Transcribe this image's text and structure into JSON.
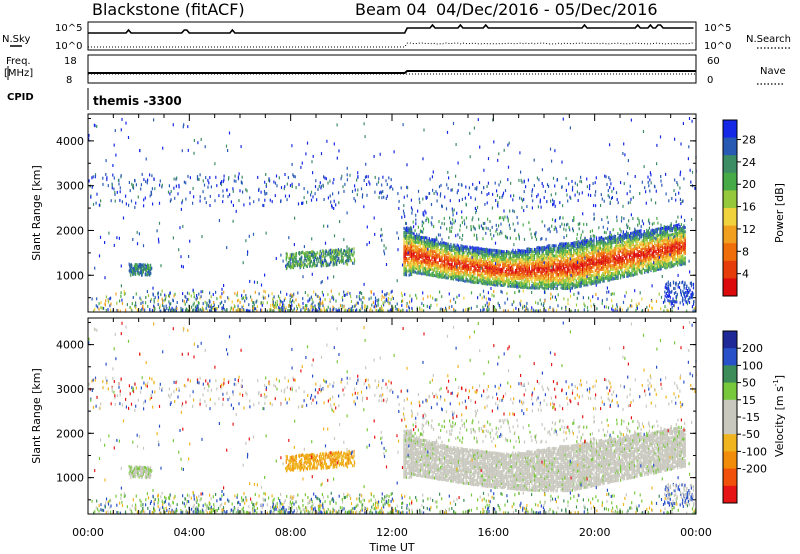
{
  "header": {
    "station": "Blackstone (fitACF)",
    "beam": "Beam 04",
    "date_range": "04/Dec/2016 - 05/Dec/2016"
  },
  "params": {
    "nsky_label": "N.Sky",
    "nsearch_label": "N.Search",
    "nsky_ticks": [
      "10^5",
      "10^0"
    ],
    "nsearch_ticks": [
      "10^5",
      "10^0"
    ],
    "freq_label_1": "Freq.",
    "freq_label_2": "[MHz]",
    "freq_ticks": [
      "18",
      "8"
    ],
    "nave_label": "Nave",
    "nave_ticks": [
      "60",
      "0"
    ],
    "cpid_label": "CPID",
    "cpid_value": "themis -3300"
  },
  "chart_data": [
    {
      "type": "heatmap",
      "title": "",
      "ylabel": "Slant Range [km]",
      "ylim": [
        180,
        4600
      ],
      "yticks": [
        "1000",
        "2000",
        "3000",
        "4000"
      ],
      "colorbar_label": "Power [dB]",
      "colorbar_ticks": [
        "4",
        "8",
        "12",
        "16",
        "20",
        "24",
        "28"
      ],
      "colorbar_colors": [
        "#1428e6",
        "#285ab4",
        "#3c8c64",
        "#46aa46",
        "#96c83c",
        "#f0d23c",
        "#f0a01e",
        "#f06e0a",
        "#e63c0a",
        "#dc0a0a"
      ]
    },
    {
      "type": "heatmap",
      "title": "",
      "ylabel": "Slant Range [km]",
      "ylim": [
        180,
        4600
      ],
      "yticks": [
        "1000",
        "2000",
        "3000",
        "4000"
      ],
      "xlabel": "Time UT",
      "xticks": [
        "00:00",
        "04:00",
        "08:00",
        "12:00",
        "16:00",
        "20:00",
        "00:00"
      ],
      "colorbar_label": "Velocity [m s",
      "colorbar_label_sup": "-1",
      "colorbar_label_end": "]",
      "colorbar_ticks": [
        "200",
        "100",
        "50",
        "15",
        "-15",
        "-50",
        "-100",
        "-200"
      ],
      "colorbar_colors": [
        "#1e2896",
        "#2850c8",
        "#3c8c5a",
        "#78c83c",
        "#c8c8be",
        "#c8c8be",
        "#f0b41e",
        "#f08c0a",
        "#f0500a",
        "#e61414"
      ]
    }
  ]
}
